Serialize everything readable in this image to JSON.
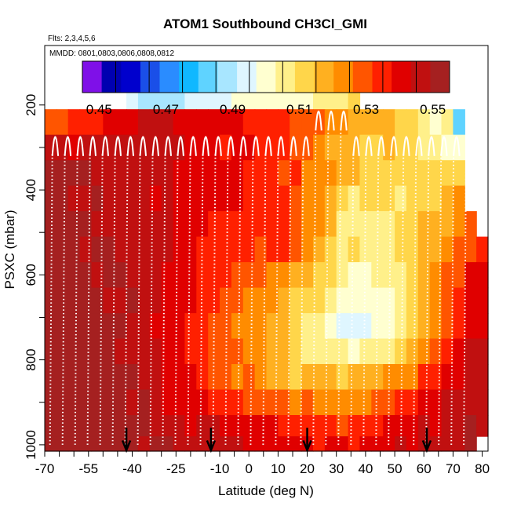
{
  "chart_data": {
    "type": "heatmap",
    "title": "ATOM1 Southbound CH3Cl_GMI",
    "annotations": [
      "Flts: 2,3,4,5,6",
      "MMDD: 0801,0803,0806,0808,0812"
    ],
    "xlabel": "Latitude (deg N)",
    "ylabel": "PSXC (mbar)",
    "xlim": [
      -70,
      82
    ],
    "ylim": [
      1015,
      60
    ],
    "y_reversed": true,
    "x_ticks": [
      -70,
      -55,
      -40,
      -25,
      -10,
      0,
      10,
      20,
      30,
      40,
      50,
      60,
      70,
      80
    ],
    "y_ticks": [
      200,
      400,
      600,
      800,
      1000
    ],
    "colorbar": {
      "range": [
        0.445,
        0.555
      ],
      "tick_values": [
        0.45,
        0.47,
        0.49,
        0.51,
        0.53,
        0.55
      ],
      "tick_labels": [
        "0.45",
        "0.47",
        "0.49",
        "0.51",
        "0.53",
        "0.55"
      ],
      "colors": [
        "#7f10e8",
        "#0000b0",
        "#0000cd",
        "#1a4fe8",
        "#2a8cff",
        "#10b8ff",
        "#5fd3ff",
        "#a8e6ff",
        "#dff6ff",
        "#ffffd0",
        "#fff08a",
        "#ffd64a",
        "#ffb020",
        "#ff8c00",
        "#ff5500",
        "#ff2000",
        "#e00000",
        "#c01010",
        "#a52020"
      ]
    },
    "latitude_columns": [
      -68,
      -64,
      -60,
      -56,
      -52,
      -48,
      -44,
      -40,
      -36,
      -32,
      -28,
      -24,
      -20,
      -16,
      -12,
      -8,
      -4,
      0,
      4,
      8,
      12,
      16,
      20,
      24,
      28,
      32,
      36,
      40,
      44,
      48,
      52,
      56,
      60,
      64,
      68,
      72,
      76,
      80
    ],
    "pressure_levels": [
      180,
      240,
      300,
      360,
      420,
      480,
      540,
      600,
      660,
      720,
      780,
      840,
      900,
      960,
      1000
    ],
    "values": [
      [
        null,
        null,
        null,
        null,
        null,
        null,
        null,
        0.492,
        0.486,
        0.487,
        0.49,
        0.491,
        0.494,
        0.496,
        0.497,
        0.497,
        0.498,
        0.499,
        0.5,
        0.5,
        0.5,
        0.502,
        0.501,
        0.506,
        0.506,
        0.508,
        0.509,
        null,
        null,
        null,
        null,
        null,
        null,
        null,
        null,
        null,
        null,
        null
      ],
      [
        0.531,
        0.531,
        0.534,
        0.532,
        0.535,
        0.538,
        0.542,
        0.542,
        0.544,
        0.544,
        0.544,
        0.542,
        0.542,
        0.541,
        0.541,
        0.538,
        0.539,
        0.536,
        0.535,
        0.532,
        0.532,
        0.529,
        0.53,
        0.527,
        0.524,
        0.524,
        0.52,
        0.518,
        0.518,
        0.517,
        0.514,
        0.514,
        0.508,
        0.5,
        0.503,
        0.483,
        null,
        null
      ],
      [
        0.545,
        0.545,
        0.541,
        0.547,
        0.545,
        0.546,
        0.545,
        0.546,
        0.544,
        0.546,
        0.546,
        0.545,
        0.542,
        0.542,
        0.54,
        0.537,
        0.539,
        0.538,
        0.536,
        0.533,
        0.535,
        0.53,
        0.529,
        0.521,
        0.519,
        0.518,
        0.516,
        0.514,
        0.512,
        0.515,
        0.511,
        0.509,
        0.508,
        0.506,
        0.502,
        0.501,
        null,
        null
      ],
      [
        0.551,
        0.551,
        0.55,
        0.551,
        0.549,
        0.547,
        0.549,
        0.545,
        0.547,
        0.545,
        0.545,
        0.542,
        0.542,
        0.542,
        0.539,
        0.54,
        0.538,
        0.536,
        0.535,
        0.535,
        0.53,
        0.532,
        0.526,
        0.521,
        0.521,
        0.518,
        0.516,
        0.514,
        0.513,
        0.512,
        0.512,
        0.509,
        0.51,
        0.51,
        0.509,
        0.51,
        null,
        null
      ],
      [
        0.55,
        0.553,
        0.548,
        0.547,
        0.551,
        0.549,
        0.549,
        0.549,
        0.546,
        0.543,
        0.544,
        0.541,
        0.539,
        0.541,
        0.54,
        0.539,
        0.538,
        0.535,
        0.537,
        0.536,
        0.536,
        0.53,
        0.526,
        0.524,
        0.517,
        0.511,
        0.507,
        0.509,
        0.511,
        0.509,
        0.508,
        0.51,
        0.511,
        0.513,
        0.517,
        0.521,
        null,
        null
      ],
      [
        0.551,
        0.553,
        0.553,
        0.55,
        0.549,
        0.548,
        0.549,
        0.547,
        0.545,
        0.546,
        0.546,
        0.541,
        0.54,
        0.538,
        0.535,
        0.537,
        0.537,
        0.535,
        0.536,
        0.534,
        0.533,
        0.531,
        0.522,
        0.523,
        0.516,
        0.507,
        0.507,
        0.508,
        0.507,
        0.508,
        0.511,
        0.512,
        0.516,
        0.516,
        0.52,
        0.524,
        0.528,
        null
      ],
      [
        0.554,
        0.55,
        0.552,
        0.549,
        0.551,
        0.551,
        0.548,
        0.547,
        0.545,
        0.545,
        0.544,
        0.541,
        0.539,
        0.537,
        0.535,
        0.537,
        0.533,
        0.533,
        0.531,
        0.532,
        0.532,
        0.528,
        0.521,
        0.516,
        0.512,
        0.506,
        0.509,
        0.505,
        0.506,
        0.505,
        0.512,
        0.512,
        0.515,
        0.518,
        0.521,
        0.53,
        0.531,
        0.537
      ],
      [
        0.55,
        0.553,
        0.553,
        0.551,
        0.549,
        0.551,
        0.55,
        0.548,
        0.548,
        0.546,
        0.543,
        0.539,
        0.538,
        0.536,
        0.532,
        0.533,
        0.531,
        0.529,
        0.528,
        0.526,
        0.526,
        0.52,
        0.515,
        0.512,
        0.509,
        0.504,
        0.502,
        0.502,
        0.503,
        0.503,
        0.508,
        0.513,
        0.518,
        0.522,
        0.527,
        0.53,
        0.539,
        0.541
      ],
      [
        0.553,
        0.553,
        0.554,
        0.551,
        0.553,
        0.549,
        0.548,
        0.551,
        0.547,
        0.545,
        0.542,
        0.539,
        0.538,
        0.536,
        0.532,
        0.528,
        0.529,
        0.524,
        0.525,
        0.522,
        0.518,
        0.514,
        0.514,
        0.509,
        0.504,
        0.501,
        0.5,
        0.498,
        0.499,
        0.502,
        0.506,
        0.511,
        0.515,
        0.524,
        0.528,
        0.535,
        0.54,
        0.541
      ],
      [
        0.55,
        0.551,
        0.55,
        0.551,
        0.552,
        0.551,
        0.553,
        0.549,
        0.546,
        0.542,
        0.542,
        0.541,
        0.537,
        0.533,
        0.531,
        0.527,
        0.526,
        0.524,
        0.522,
        0.517,
        0.515,
        0.513,
        0.508,
        0.508,
        0.5,
        0.497,
        0.494,
        0.496,
        0.498,
        0.502,
        0.506,
        0.509,
        0.519,
        0.522,
        0.53,
        0.536,
        0.538,
        0.541
      ],
      [
        0.55,
        0.551,
        0.554,
        0.553,
        0.552,
        0.552,
        0.548,
        0.549,
        0.546,
        0.545,
        0.539,
        0.539,
        0.537,
        0.535,
        0.529,
        0.529,
        0.527,
        0.523,
        0.521,
        0.515,
        0.516,
        0.509,
        0.507,
        0.507,
        0.505,
        0.503,
        0.502,
        0.503,
        0.507,
        0.508,
        0.512,
        0.519,
        0.525,
        0.531,
        0.537,
        0.541,
        0.547,
        0.546
      ],
      [
        0.552,
        0.554,
        0.552,
        0.552,
        0.551,
        0.551,
        0.55,
        0.55,
        0.546,
        0.546,
        0.542,
        0.538,
        0.538,
        0.532,
        0.531,
        0.529,
        0.526,
        0.527,
        0.521,
        0.52,
        0.517,
        0.514,
        0.515,
        0.515,
        0.515,
        0.513,
        0.515,
        0.515,
        0.517,
        0.521,
        0.522,
        0.526,
        0.532,
        0.536,
        0.541,
        0.542,
        0.548,
        0.545
      ],
      [
        0.551,
        0.551,
        0.552,
        0.554,
        0.554,
        0.553,
        0.55,
        0.549,
        0.55,
        0.546,
        0.543,
        0.543,
        0.54,
        0.538,
        0.536,
        0.535,
        0.535,
        0.53,
        0.53,
        0.53,
        0.53,
        0.526,
        0.527,
        0.525,
        0.524,
        0.522,
        0.524,
        0.525,
        0.528,
        0.531,
        0.534,
        0.535,
        0.538,
        0.54,
        0.545,
        0.546,
        0.546,
        0.548
      ],
      [
        0.554,
        0.553,
        0.555,
        0.554,
        0.552,
        0.55,
        0.553,
        0.553,
        0.55,
        0.549,
        0.547,
        0.548,
        0.543,
        0.545,
        0.545,
        0.543,
        0.541,
        0.538,
        0.538,
        0.538,
        0.537,
        0.535,
        0.533,
        0.533,
        0.533,
        0.531,
        0.533,
        0.533,
        0.536,
        0.54,
        0.538,
        0.54,
        0.545,
        0.542,
        0.547,
        0.547,
        0.55,
        0.549
      ],
      [
        0.553,
        0.552,
        0.554,
        0.554,
        0.554,
        0.554,
        0.551,
        0.555,
        0.549,
        0.551,
        0.552,
        0.548,
        0.547,
        0.546,
        0.544,
        0.545,
        0.544,
        0.542,
        0.542,
        0.541,
        0.539,
        0.539,
        0.539,
        0.536,
        0.538,
        0.539,
        0.537,
        0.539,
        0.541,
        0.539,
        0.545,
        0.542,
        0.547,
        0.547,
        0.546,
        0.549,
        0.55,
        null
      ]
    ],
    "flight_track_color": "#ffffff",
    "arrow_latitudes": [
      -42,
      -13,
      20,
      61
    ]
  }
}
